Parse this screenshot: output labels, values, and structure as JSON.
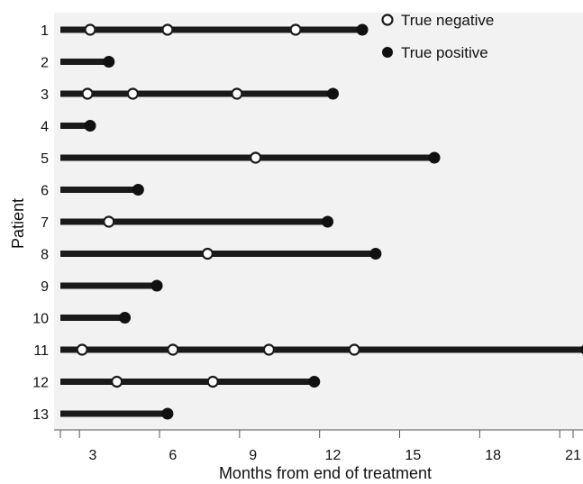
{
  "chart_data": {
    "type": "scatter",
    "title": "",
    "xlabel": "Months from end of treatment",
    "ylabel": "Patient",
    "xlim": [
      1.3,
      21.8
    ],
    "x_ticks": [
      "3",
      "6",
      "9",
      "12",
      "15",
      "18",
      "21"
    ],
    "x_tick_values": [
      3,
      6,
      9,
      12,
      15,
      18,
      21
    ],
    "legend_position": "top-right",
    "background": "#f2f2f2",
    "colors": {
      "line": "#1a1a1a",
      "negative_fill": "#ffffff",
      "positive_fill": "#111111"
    },
    "legend": [
      {
        "key": "negative",
        "label": "True negative"
      },
      {
        "key": "positive",
        "label": "True positive"
      }
    ],
    "series": [
      {
        "name": "True negative",
        "marker": "open-circle"
      },
      {
        "name": "True positive",
        "marker": "filled-circle"
      }
    ],
    "patients": [
      {
        "label": "1",
        "end": 13.1,
        "negatives": [
          2.9,
          5.8,
          10.6
        ],
        "positives": [
          13.1
        ]
      },
      {
        "label": "2",
        "end": 3.6,
        "negatives": [],
        "positives": [
          3.6
        ]
      },
      {
        "label": "3",
        "end": 12.0,
        "negatives": [
          2.8,
          4.5,
          8.4
        ],
        "positives": [
          12.0
        ]
      },
      {
        "label": "4",
        "end": 2.9,
        "negatives": [],
        "positives": [
          2.9
        ]
      },
      {
        "label": "5",
        "end": 15.8,
        "negatives": [
          9.1
        ],
        "positives": [
          15.8
        ]
      },
      {
        "label": "6",
        "end": 4.7,
        "negatives": [],
        "positives": [
          4.7
        ]
      },
      {
        "label": "7",
        "end": 11.8,
        "negatives": [
          3.6
        ],
        "positives": [
          11.8
        ]
      },
      {
        "label": "8",
        "end": 13.6,
        "negatives": [
          7.3
        ],
        "positives": [
          13.6
        ]
      },
      {
        "label": "9",
        "end": 5.4,
        "negatives": [],
        "positives": [
          5.4
        ]
      },
      {
        "label": "10",
        "end": 4.2,
        "negatives": [],
        "positives": [
          4.2
        ]
      },
      {
        "label": "11",
        "end": 21.5,
        "negatives": [
          2.6,
          6.0,
          9.6,
          12.8
        ],
        "positives": [
          21.5
        ]
      },
      {
        "label": "12",
        "end": 11.3,
        "negatives": [
          3.9,
          7.5
        ],
        "positives": [
          11.3
        ]
      },
      {
        "label": "13",
        "end": 5.8,
        "negatives": [],
        "positives": [
          5.8
        ]
      }
    ]
  }
}
